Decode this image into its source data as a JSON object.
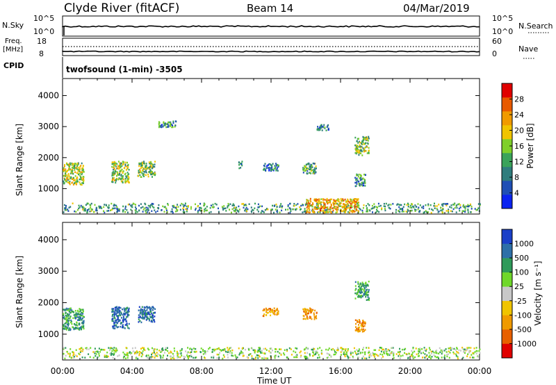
{
  "header": {
    "station": "Clyde River (fitACF)",
    "beam": "Beam 14",
    "date": "04/Mar/2019"
  },
  "noise_panel": {
    "left_label": "N.Sky",
    "left_ticks": [
      "10^5",
      "10^0"
    ],
    "right_ticks": [
      "10^5",
      "10^0"
    ],
    "right_label": "N.Search"
  },
  "freq_panel": {
    "left_label_1": "Freq.",
    "left_label_2": "[MHz]",
    "left_ticks": [
      "18",
      "8"
    ],
    "right_ticks": [
      "60",
      "0"
    ],
    "right_label": "Nave"
  },
  "cpid": {
    "label": "CPID",
    "program": "twofsound (1-min) -3505"
  },
  "chart_data": [
    {
      "type": "heatmap",
      "parameter": "Power",
      "ylabel": "Slant Range [km]",
      "y_ticks": [
        1000,
        2000,
        3000,
        4000
      ],
      "ylim": [
        180,
        4550
      ],
      "xlim": [
        0,
        24
      ],
      "colorbar": {
        "label": "Power [dB]",
        "ticks": [
          "4",
          "8",
          "12",
          "16",
          "20",
          "24",
          "28"
        ],
        "range": [
          0,
          30
        ],
        "colors": [
          "#0b23f0",
          "#1f4fb5",
          "#2f7d7d",
          "#3aa35a",
          "#7fcf2a",
          "#f0c400",
          "#f09a00",
          "#e85a00",
          "#e00000"
        ]
      },
      "echo_regions": [
        {
          "t": [
            0.0,
            1.2
          ],
          "r": [
            1150,
            1850
          ],
          "level": 0.55
        },
        {
          "t": [
            2.8,
            3.8
          ],
          "r": [
            1200,
            1900
          ],
          "level": 0.5
        },
        {
          "t": [
            4.3,
            5.3
          ],
          "r": [
            1400,
            1900
          ],
          "level": 0.45
        },
        {
          "t": [
            13.8,
            14.6
          ],
          "r": [
            1500,
            1850
          ],
          "level": 0.35
        },
        {
          "t": [
            16.8,
            17.6
          ],
          "r": [
            2100,
            2700
          ],
          "level": 0.45
        },
        {
          "t": [
            16.8,
            17.4
          ],
          "r": [
            1100,
            1500
          ],
          "level": 0.3
        },
        {
          "t": [
            10.1,
            10.3
          ],
          "r": [
            1650,
            1900
          ],
          "level": 0.2
        },
        {
          "t": [
            11.5,
            12.4
          ],
          "r": [
            1600,
            1850
          ],
          "level": 0.2
        },
        {
          "t": [
            14.6,
            15.3
          ],
          "r": [
            2900,
            3100
          ],
          "level": 0.2
        },
        {
          "t": [
            5.5,
            6.5
          ],
          "r": [
            3000,
            3200
          ],
          "level": 0.3
        },
        {
          "t": [
            0.0,
            24.0
          ],
          "r": [
            250,
            550
          ],
          "level": 0.35
        },
        {
          "t": [
            14.0,
            17.0
          ],
          "r": [
            250,
            700
          ],
          "level": 0.7
        }
      ]
    },
    {
      "type": "heatmap",
      "parameter": "Velocity",
      "ylabel": "Slant Range [km]",
      "y_ticks": [
        1000,
        2000,
        3000,
        4000
      ],
      "ylim": [
        180,
        4550
      ],
      "xlim": [
        0,
        24
      ],
      "colorbar": {
        "label": "Velocity [m s⁻¹]",
        "ticks": [
          "1000",
          "500",
          "100",
          "25",
          "-25",
          "-100",
          "-500",
          "-1000"
        ],
        "colors": [
          "#1a3fc8",
          "#2d6fa8",
          "#2f9a5a",
          "#6fd82a",
          "#c8c8c8",
          "#f0c400",
          "#f09a00",
          "#e86000",
          "#e00000"
        ]
      },
      "echo_regions": [
        {
          "t": [
            0.0,
            1.2
          ],
          "r": [
            1150,
            1850
          ],
          "level": "pos"
        },
        {
          "t": [
            2.8,
            3.8
          ],
          "r": [
            1200,
            1900
          ],
          "level": "pos_high"
        },
        {
          "t": [
            4.3,
            5.3
          ],
          "r": [
            1400,
            1900
          ],
          "level": "pos_high"
        },
        {
          "t": [
            13.8,
            14.6
          ],
          "r": [
            1500,
            1850
          ],
          "level": "neg"
        },
        {
          "t": [
            16.8,
            17.6
          ],
          "r": [
            2100,
            2700
          ],
          "level": "pos"
        },
        {
          "t": [
            16.8,
            17.4
          ],
          "r": [
            1100,
            1500
          ],
          "level": "neg"
        },
        {
          "t": [
            11.5,
            12.4
          ],
          "r": [
            1600,
            1850
          ],
          "level": "neg"
        },
        {
          "t": [
            0.0,
            24.0
          ],
          "r": [
            250,
            600
          ],
          "level": "pos_low"
        }
      ]
    }
  ],
  "time_axis": {
    "ticks": [
      "00:00",
      "04:00",
      "08:00",
      "12:00",
      "16:00",
      "20:00",
      "00:00"
    ],
    "label": "Time UT"
  }
}
